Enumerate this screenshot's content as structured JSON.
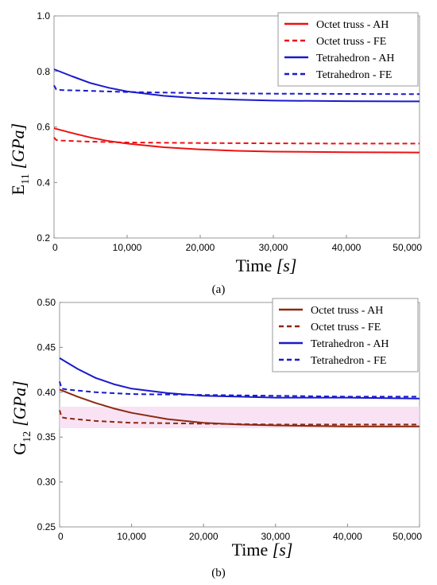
{
  "chart_data": [
    {
      "type": "line",
      "panel": "a",
      "caption": "(a)",
      "xlabel": "Time [s]",
      "xlabel_parts": {
        "main": "Time ",
        "unit": "[s]"
      },
      "ylabel": "E11 [GPa]",
      "ylabel_parts": {
        "base": "E",
        "sub": "11",
        "unit": "[GPa]"
      },
      "xlim": [
        0,
        50000
      ],
      "ylim": [
        0.2,
        1.0
      ],
      "x_ticks": [
        0,
        10000,
        20000,
        30000,
        40000,
        50000
      ],
      "x_tick_labels": [
        "0",
        "10,000",
        "20,000",
        "30,000",
        "40,000",
        "50,000"
      ],
      "y_ticks": [
        0.2,
        0.4,
        0.6,
        0.8,
        1.0
      ],
      "y_tick_labels": [
        "0.2",
        "0.4",
        "0.6",
        "0.8",
        "1.0"
      ],
      "legend_position": "top-right",
      "series": [
        {
          "name": "Octet truss - AH",
          "color": "#ee1111",
          "dash": "solid",
          "x": [
            0,
            2500,
            5000,
            7500,
            10000,
            15000,
            20000,
            25000,
            30000,
            40000,
            50000
          ],
          "values": [
            0.595,
            0.578,
            0.562,
            0.549,
            0.54,
            0.527,
            0.519,
            0.514,
            0.511,
            0.509,
            0.508
          ]
        },
        {
          "name": "Octet truss - FE",
          "color": "#ee1111",
          "dash": "dashed",
          "x": [
            0,
            300,
            1000,
            5000,
            10000,
            20000,
            30000,
            40000,
            50000
          ],
          "values": [
            0.562,
            0.553,
            0.551,
            0.547,
            0.544,
            0.542,
            0.541,
            0.54,
            0.54
          ]
        },
        {
          "name": "Tetrahedron - AH",
          "color": "#1a1acc",
          "dash": "solid",
          "x": [
            0,
            2500,
            5000,
            7500,
            10000,
            15000,
            20000,
            25000,
            30000,
            40000,
            50000
          ],
          "values": [
            0.808,
            0.782,
            0.758,
            0.741,
            0.728,
            0.712,
            0.703,
            0.698,
            0.695,
            0.693,
            0.692
          ]
        },
        {
          "name": "Tetrahedron - FE",
          "color": "#1a1acc",
          "dash": "dashed",
          "x": [
            0,
            300,
            1000,
            5000,
            10000,
            20000,
            30000,
            40000,
            50000
          ],
          "values": [
            0.75,
            0.735,
            0.733,
            0.73,
            0.726,
            0.722,
            0.72,
            0.719,
            0.718
          ]
        }
      ]
    },
    {
      "type": "line",
      "panel": "b",
      "caption": "(b)",
      "xlabel": "Time [s]",
      "xlabel_parts": {
        "main": "Time ",
        "unit": "[s]"
      },
      "ylabel": "G12 [GPa]",
      "ylabel_parts": {
        "base": "G",
        "sub": "12",
        "unit": "[GPa]"
      },
      "xlim": [
        0,
        50000
      ],
      "ylim": [
        0.25,
        0.5
      ],
      "x_ticks": [
        0,
        10000,
        20000,
        30000,
        40000,
        50000
      ],
      "x_tick_labels": [
        "0",
        "10,000",
        "20,000",
        "30,000",
        "40,000",
        "50,000"
      ],
      "y_ticks": [
        0.25,
        0.3,
        0.35,
        0.4,
        0.45,
        0.5
      ],
      "y_tick_labels": [
        "0.25",
        "0.30",
        "0.35",
        "0.40",
        "0.45",
        "0.50"
      ],
      "legend_position": "top-right",
      "series": [
        {
          "name": "Octet truss - AH",
          "color": "#8b2a10",
          "dash": "solid",
          "x": [
            0,
            2500,
            5000,
            7500,
            10000,
            15000,
            20000,
            25000,
            30000,
            40000,
            50000
          ],
          "values": [
            0.403,
            0.395,
            0.388,
            0.382,
            0.377,
            0.37,
            0.366,
            0.364,
            0.363,
            0.362,
            0.362
          ]
        },
        {
          "name": "Octet truss - FE",
          "color": "#8b2a10",
          "dash": "dashed",
          "x": [
            0,
            300,
            1000,
            5000,
            10000,
            20000,
            30000,
            40000,
            50000
          ],
          "values": [
            0.38,
            0.372,
            0.371,
            0.368,
            0.366,
            0.365,
            0.364,
            0.364,
            0.364
          ]
        },
        {
          "name": "Tetrahedron - AH",
          "color": "#1a1acc",
          "dash": "solid",
          "x": [
            0,
            2500,
            5000,
            7500,
            10000,
            15000,
            20000,
            25000,
            30000,
            40000,
            50000
          ],
          "values": [
            0.438,
            0.426,
            0.416,
            0.409,
            0.404,
            0.399,
            0.396,
            0.395,
            0.394,
            0.394,
            0.393
          ]
        },
        {
          "name": "Tetrahedron - FE",
          "color": "#1a1acc",
          "dash": "dashed",
          "x": [
            0,
            300,
            1000,
            5000,
            10000,
            20000,
            30000,
            40000,
            50000
          ],
          "values": [
            0.412,
            0.404,
            0.403,
            0.4,
            0.398,
            0.397,
            0.396,
            0.395,
            0.395
          ]
        }
      ]
    }
  ]
}
